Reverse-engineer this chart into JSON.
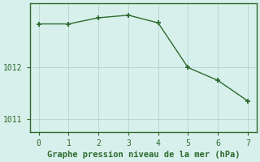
{
  "x": [
    0,
    1,
    2,
    3,
    4,
    5,
    6,
    7
  ],
  "y": [
    1012.85,
    1012.85,
    1012.97,
    1013.02,
    1012.87,
    1012.0,
    1011.75,
    1011.35
  ],
  "line_color": "#2d6a2d",
  "marker_color": "#2d6a2d",
  "bg_color": "#d8f0ec",
  "grid_color": "#aacfc8",
  "spine_color": "#2d6a2d",
  "xlabel": "Graphe pression niveau de la mer (hPa)",
  "xlabel_color": "#2d6a2d",
  "xlabel_fontsize": 7.5,
  "tick_color": "#2d6a2d",
  "tick_fontsize": 7,
  "xlim": [
    -0.3,
    7.3
  ],
  "ylim": [
    1010.75,
    1013.25
  ],
  "yticks": [
    1011,
    1012
  ],
  "xticks": [
    0,
    1,
    2,
    3,
    4,
    5,
    6,
    7
  ],
  "linewidth": 1.0,
  "markersize": 4.0,
  "grid_linewidth": 0.5
}
